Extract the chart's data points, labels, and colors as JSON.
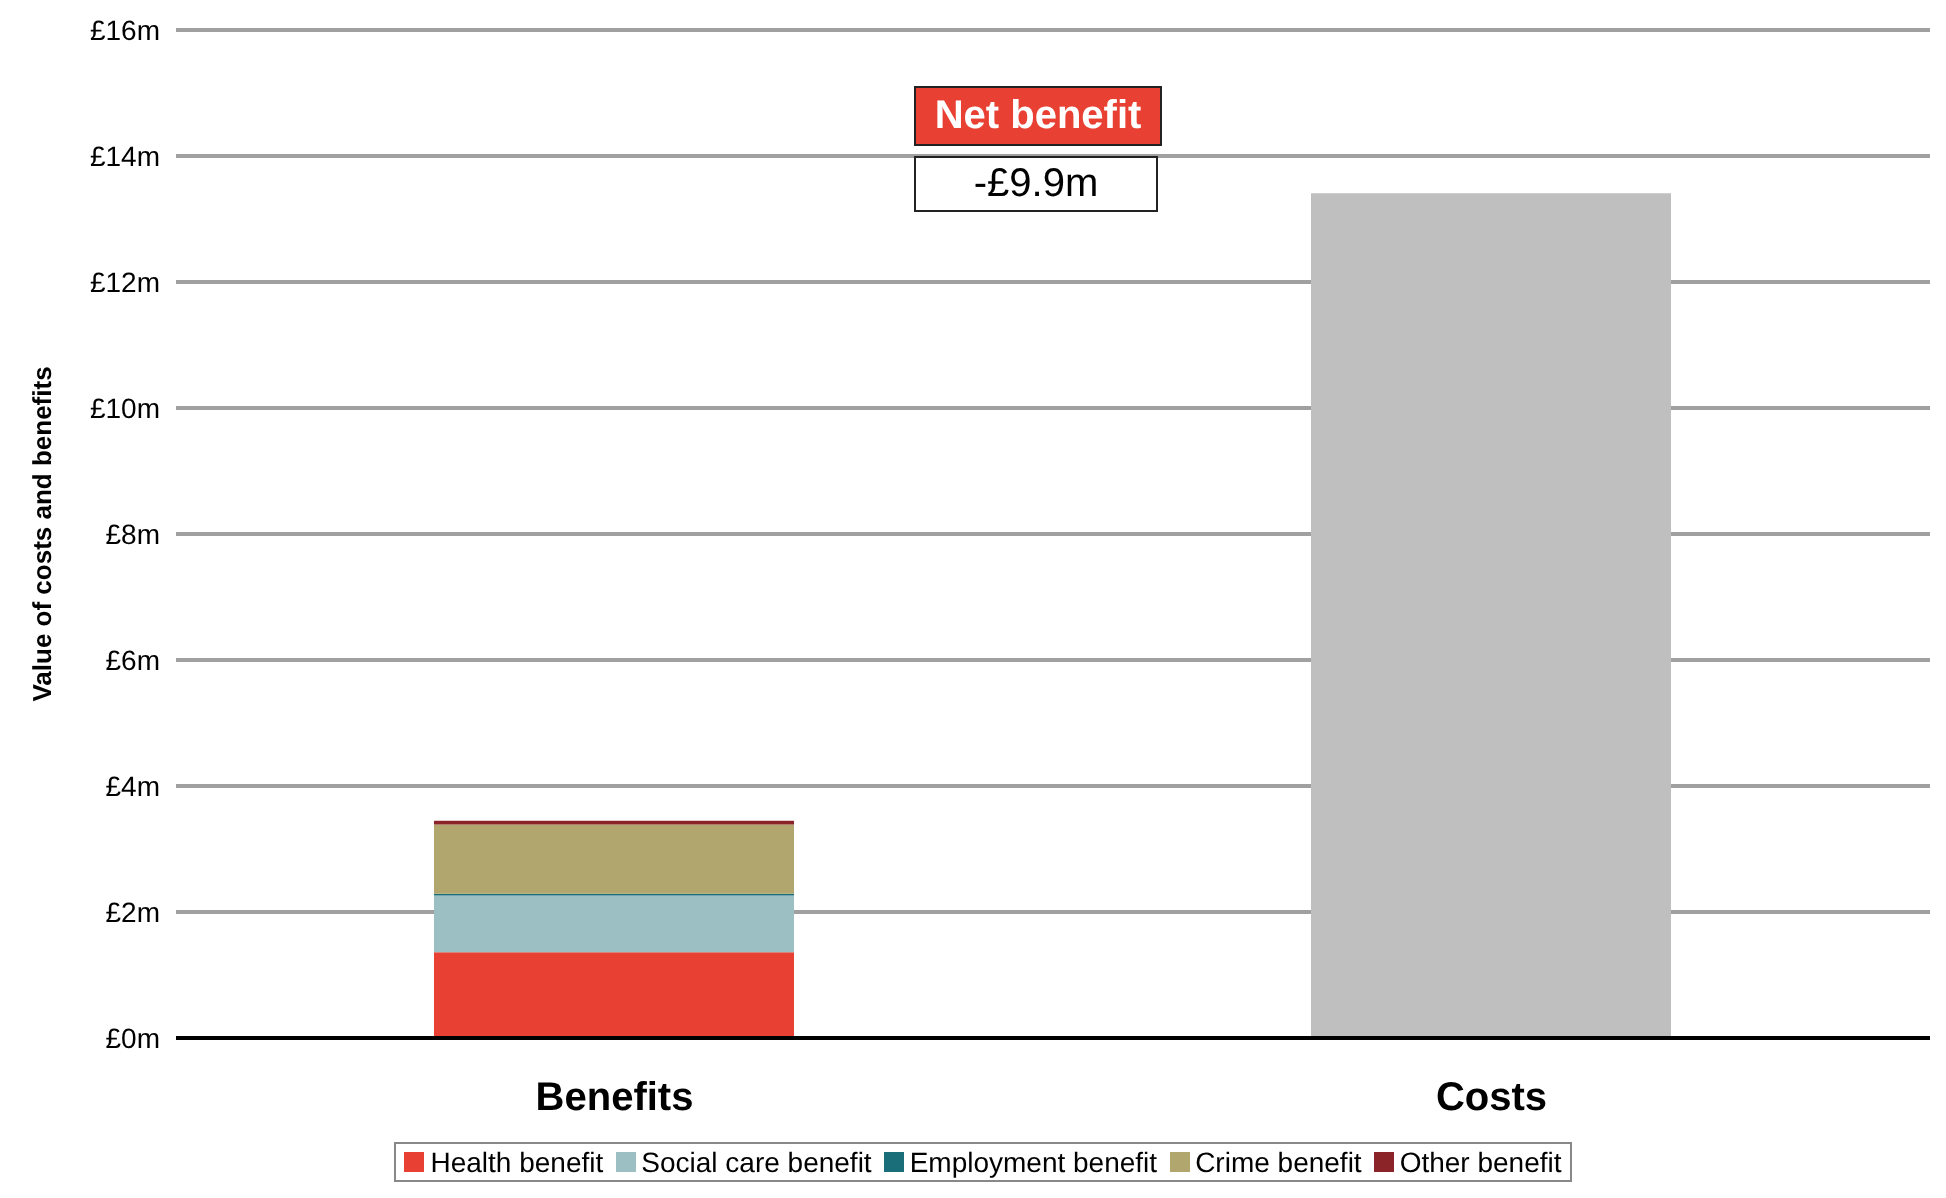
{
  "chart_data": {
    "type": "bar",
    "stacked": true,
    "ylabel": "Value of costs and benefits",
    "categories": [
      "Benefits",
      "Costs"
    ],
    "series": [
      {
        "name": "Health benefit",
        "color": "#e84033",
        "values": [
          1.36,
          null
        ]
      },
      {
        "name": "Social care benefit",
        "color": "#9bbfc2",
        "values": [
          0.9,
          null
        ]
      },
      {
        "name": "Employment benefit",
        "color": "#1a6e7a",
        "values": [
          0.03,
          null
        ]
      },
      {
        "name": "Crime benefit",
        "color": "#b1a66d",
        "values": [
          1.1,
          null
        ]
      },
      {
        "name": "Other benefit",
        "color": "#8b2429",
        "values": [
          0.06,
          null
        ]
      },
      {
        "color": "#bfbfbf",
        "values": [
          null,
          13.41
        ]
      }
    ],
    "ylim": [
      0,
      16
    ],
    "yticks": [
      {
        "value": 0,
        "label": "£0m"
      },
      {
        "value": 2,
        "label": "£2m"
      },
      {
        "value": 4,
        "label": "£4m"
      },
      {
        "value": 6,
        "label": "£6m"
      },
      {
        "value": 8,
        "label": "£8m"
      },
      {
        "value": 10,
        "label": "£10m"
      },
      {
        "value": 12,
        "label": "£12m"
      },
      {
        "value": 14,
        "label": "£14m"
      },
      {
        "value": 16,
        "label": "£16m"
      }
    ],
    "grid": "y",
    "legend": "bottom",
    "annotations": [
      "Net benefit",
      "-£9.9m"
    ]
  }
}
